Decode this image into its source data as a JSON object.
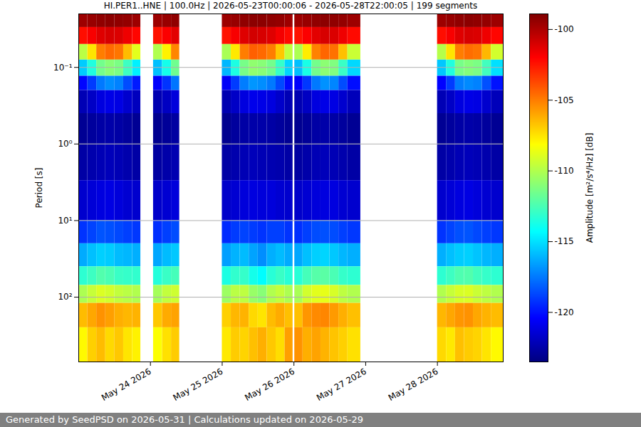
{
  "chart_data": {
    "type": "heatmap",
    "title": "HI.PER1..HNE | 100.0Hz | 2026-05-23T00:00:06 - 2026-05-28T22:00:05 | 199 segments",
    "ylabel": "Period [s]",
    "footer": "Generated by SeedPSD on 2026-05-31 | Calculations updated on 2026-05-29",
    "log": "y",
    "grid": "y",
    "color": "jet",
    "xlim": [
      "2026-05-23T00:00:06",
      "2026-05-28T22:00:05"
    ],
    "xticks": [
      {
        "value": "2026-05-24",
        "label": "May 24 2026"
      },
      {
        "value": "2026-05-25",
        "label": "May 25 2026"
      },
      {
        "value": "2026-05-26",
        "label": "May 26 2026"
      },
      {
        "value": "2026-05-27",
        "label": "May 27 2026"
      },
      {
        "value": "2026-05-28",
        "label": "May 28 2026"
      }
    ],
    "ylim": [
      0.02,
      700
    ],
    "yticks": [
      {
        "value": 0.1,
        "label": "10⁻¹"
      },
      {
        "value": 1,
        "label": "10⁰"
      },
      {
        "value": 10,
        "label": "10¹"
      },
      {
        "value": 100,
        "label": "10²"
      }
    ],
    "period_edges": [
      0.02,
      0.03,
      0.05,
      0.08,
      0.13,
      0.2,
      0.4,
      1,
      3,
      10,
      20,
      40,
      70,
      120,
      250,
      700
    ],
    "time_bins": [
      [
        "2026-05-23T00:00",
        "2026-05-23T03:00"
      ],
      [
        "2026-05-23T03:00",
        "2026-05-23T06:00"
      ],
      [
        "2026-05-23T06:00",
        "2026-05-23T09:00"
      ],
      [
        "2026-05-23T09:00",
        "2026-05-23T12:00"
      ],
      [
        "2026-05-23T12:00",
        "2026-05-23T15:00"
      ],
      [
        "2026-05-23T15:00",
        "2026-05-23T18:00"
      ],
      [
        "2026-05-23T18:00",
        "2026-05-23T20:45"
      ],
      [
        "2026-05-24T01:00",
        "2026-05-24T04:00"
      ],
      [
        "2026-05-24T04:00",
        "2026-05-24T07:00"
      ],
      [
        "2026-05-24T07:00",
        "2026-05-24T09:45"
      ],
      [
        "2026-05-25T00:00",
        "2026-05-25T03:00"
      ],
      [
        "2026-05-25T03:00",
        "2026-05-25T06:00"
      ],
      [
        "2026-05-25T06:00",
        "2026-05-25T09:00"
      ],
      [
        "2026-05-25T09:00",
        "2026-05-25T12:00"
      ],
      [
        "2026-05-25T12:00",
        "2026-05-25T15:00"
      ],
      [
        "2026-05-25T15:00",
        "2026-05-25T18:00"
      ],
      [
        "2026-05-25T18:00",
        "2026-05-25T21:00"
      ],
      [
        "2026-05-25T21:00",
        "2026-05-25T23:40"
      ],
      [
        "2026-05-26T00:15",
        "2026-05-26T03:00"
      ],
      [
        "2026-05-26T03:00",
        "2026-05-26T06:00"
      ],
      [
        "2026-05-26T06:00",
        "2026-05-26T09:00"
      ],
      [
        "2026-05-26T09:00",
        "2026-05-26T12:00"
      ],
      [
        "2026-05-26T12:00",
        "2026-05-26T15:00"
      ],
      [
        "2026-05-26T15:00",
        "2026-05-26T18:00"
      ],
      [
        "2026-05-26T18:00",
        "2026-05-26T22:20"
      ],
      [
        "2026-05-28T00:00",
        "2026-05-28T03:00"
      ],
      [
        "2026-05-28T03:00",
        "2026-05-28T06:00"
      ],
      [
        "2026-05-28T06:00",
        "2026-05-28T09:00"
      ],
      [
        "2026-05-28T09:00",
        "2026-05-28T12:00"
      ],
      [
        "2026-05-28T12:00",
        "2026-05-28T15:00"
      ],
      [
        "2026-05-28T15:00",
        "2026-05-28T18:00"
      ],
      [
        "2026-05-28T18:00",
        "2026-05-28T22:00"
      ]
    ],
    "cells": [
      [
        -99.6,
        -102.3,
        -109.8,
        -115.5,
        -120.3,
        -122.2,
        -123,
        -122.6,
        -121.6,
        -119.2,
        -116.3,
        -113.2,
        -110.1,
        -106.5,
        -108
      ],
      [
        -99.5,
        -101.8,
        -107.5,
        -113.5,
        -119,
        -121.8,
        -122.8,
        -122.4,
        -121.4,
        -118.8,
        -115.8,
        -112.8,
        -109.5,
        -106,
        -107
      ],
      [
        -99.3,
        -101.2,
        -105,
        -111.5,
        -117.5,
        -121.2,
        -122.6,
        -122.2,
        -121.2,
        -118.4,
        -115.4,
        -112.3,
        -109,
        -105.5,
        -106.5
      ],
      [
        -99.2,
        -101,
        -104.5,
        -111,
        -117,
        -121,
        -122.5,
        -122.1,
        -121.1,
        -118.5,
        -115.5,
        -112.5,
        -109.2,
        -105.8,
        -107.2
      ],
      [
        -99.3,
        -101.1,
        -104.8,
        -111.3,
        -117.3,
        -121.1,
        -122.6,
        -122.2,
        -121.3,
        -118.7,
        -115.9,
        -112.9,
        -109.6,
        -106.2,
        -106.8
      ],
      [
        -99.4,
        -101.6,
        -106.5,
        -112.8,
        -118.6,
        -121.6,
        -122.8,
        -122.4,
        -121.5,
        -118.9,
        -116,
        -113,
        -109.8,
        -106.4,
        -107.5
      ],
      [
        -99.6,
        -102.1,
        -108.8,
        -114.6,
        -119.8,
        -122,
        -123,
        -122.6,
        -121.6,
        -119.1,
        -116.2,
        -113.1,
        -110,
        -106.3,
        -107.8
      ],
      [
        -99.6,
        -102.4,
        -110,
        -115.8,
        -120.5,
        -122.3,
        -123.1,
        -122.7,
        -121.7,
        -119.3,
        -116.4,
        -113.4,
        -110.3,
        -106.8,
        -108.2
      ],
      [
        -99.5,
        -101.9,
        -107.8,
        -113.8,
        -119.2,
        -121.9,
        -122.9,
        -122.5,
        -121.5,
        -118.9,
        -115.9,
        -112.9,
        -109.6,
        -106.1,
        -107.4
      ],
      [
        -99.3,
        -101.3,
        -105.2,
        -111.6,
        -117.6,
        -121.3,
        -122.7,
        -122.3,
        -121.3,
        -118.6,
        -115.6,
        -112.6,
        -109.3,
        -105.9,
        -106.9
      ],
      [
        -99.6,
        -102.4,
        -110.2,
        -116,
        -120.6,
        -122.3,
        -123.1,
        -122.6,
        -121.7,
        -119.4,
        -116.6,
        -113.6,
        -110.5,
        -107,
        -107.6
      ],
      [
        -99.5,
        -101.8,
        -107.6,
        -113.6,
        -119,
        -121.8,
        -122.8,
        -122.4,
        -121.5,
        -119,
        -116.1,
        -113.1,
        -109.8,
        -106.4,
        -106.9
      ],
      [
        -99.3,
        -101.2,
        -105,
        -111.4,
        -117.4,
        -121.2,
        -122.6,
        -122.2,
        -121.3,
        -118.8,
        -115.9,
        -113,
        -109.7,
        -106.3,
        -107.1
      ],
      [
        -99.2,
        -100.9,
        -104.3,
        -110.8,
        -116.8,
        -120.9,
        -122.5,
        -122.1,
        -121.2,
        -119,
        -116.5,
        -113.8,
        -110.6,
        -107.2,
        -106.6
      ],
      [
        -99.2,
        -101,
        -104.5,
        -111,
        -117,
        -121,
        -122.5,
        -122.2,
        -121.3,
        -119.2,
        -117,
        -114.3,
        -111,
        -107.5,
        -106.2
      ],
      [
        -99.3,
        -101.2,
        -105,
        -111.5,
        -117.5,
        -121.2,
        -122.6,
        -122.3,
        -121.3,
        -118.9,
        -116.2,
        -113.3,
        -110,
        -106.5,
        -106.8
      ],
      [
        -99.4,
        -101.7,
        -106.8,
        -113,
        -118.7,
        -121.7,
        -122.8,
        -122.4,
        -121.5,
        -118.9,
        -115.9,
        -112.9,
        -109.6,
        -106.1,
        -107.3
      ],
      [
        -99.6,
        -102.2,
        -109.6,
        -115.3,
        -120.2,
        -122.2,
        -123,
        -122.6,
        -121.6,
        -119.2,
        -116.3,
        -113.3,
        -110.1,
        -106.6,
        -105.8
      ],
      [
        -99.6,
        -102.4,
        -110.1,
        -115.8,
        -120.5,
        -122.3,
        -123.1,
        -122.7,
        -121.7,
        -119.3,
        -116.4,
        -113.3,
        -110.2,
        -106.6,
        -105.5
      ],
      [
        -99.5,
        -101.9,
        -107.7,
        -113.7,
        -119.1,
        -121.9,
        -122.9,
        -122.5,
        -121.5,
        -118.9,
        -115.8,
        -112.6,
        -109.2,
        -105.6,
        -106.2
      ],
      [
        -99.3,
        -101.3,
        -105.1,
        -111.5,
        -117.5,
        -121.2,
        -122.6,
        -122.2,
        -121.3,
        -118.6,
        -115.4,
        -112.2,
        -108.8,
        -105.3,
        -105.9
      ],
      [
        -99.2,
        -101,
        -104.4,
        -110.9,
        -116.9,
        -121,
        -122.5,
        -122.1,
        -121.2,
        -118.5,
        -115.3,
        -112.1,
        -108.7,
        -105.2,
        -106.3
      ],
      [
        -99.3,
        -101.1,
        -104.7,
        -111.2,
        -117.2,
        -121.1,
        -122.6,
        -122.2,
        -121.2,
        -118.6,
        -115.6,
        -112.5,
        -109.1,
        -105.7,
        -106.7
      ],
      [
        -99.4,
        -101.6,
        -106.6,
        -112.9,
        -118.6,
        -121.6,
        -122.8,
        -122.4,
        -121.5,
        -118.9,
        -116,
        -113,
        -109.7,
        -106.2,
        -107
      ],
      [
        -99.6,
        -102.2,
        -109.4,
        -115.2,
        -120.1,
        -122.1,
        -123,
        -122.6,
        -121.6,
        -119.1,
        -116.2,
        -113.2,
        -110,
        -106.6,
        -107.4
      ],
      [
        -99.6,
        -102.3,
        -109.9,
        -115.6,
        -120.4,
        -122.2,
        -123,
        -122.6,
        -121.6,
        -119.2,
        -116.2,
        -113.2,
        -110,
        -106.4,
        -107.2
      ],
      [
        -99.5,
        -101.8,
        -107.5,
        -113.5,
        -119,
        -121.8,
        -122.8,
        -122.4,
        -121.4,
        -118.8,
        -115.8,
        -112.8,
        -109.5,
        -106,
        -107.6
      ],
      [
        -99.3,
        -101.2,
        -105,
        -111.4,
        -117.4,
        -121.2,
        -122.6,
        -122.2,
        -121.2,
        -118.5,
        -115.5,
        -112.4,
        -109.1,
        -105.6,
        -106.6
      ],
      [
        -99.2,
        -101,
        -104.6,
        -111.1,
        -117.1,
        -121,
        -122.5,
        -122.1,
        -121.1,
        -118.4,
        -115.4,
        -112.3,
        -109,
        -105.5,
        -106.9
      ],
      [
        -99.3,
        -101.1,
        -104.8,
        -111.3,
        -117.3,
        -121.1,
        -122.6,
        -122.2,
        -121.3,
        -118.7,
        -115.7,
        -112.7,
        -109.4,
        -106,
        -107.1
      ],
      [
        -99.4,
        -101.6,
        -106.4,
        -112.7,
        -118.5,
        -121.6,
        -122.8,
        -122.4,
        -121.5,
        -118.9,
        -116,
        -113,
        -109.7,
        -106.3,
        -107.5
      ],
      [
        -99.6,
        -102.1,
        -109.2,
        -115,
        -120,
        -122.1,
        -123,
        -122.6,
        -121.6,
        -119.1,
        -116.2,
        -113.2,
        -110,
        -106.5,
        -108
      ]
    ],
    "colorbar": {
      "label": "Amplitude [m²/s⁴/Hz] [dB]",
      "range": [
        -123.5,
        -98.9
      ],
      "ticks": [
        -120,
        -115,
        -110,
        -105,
        -100
      ]
    }
  }
}
